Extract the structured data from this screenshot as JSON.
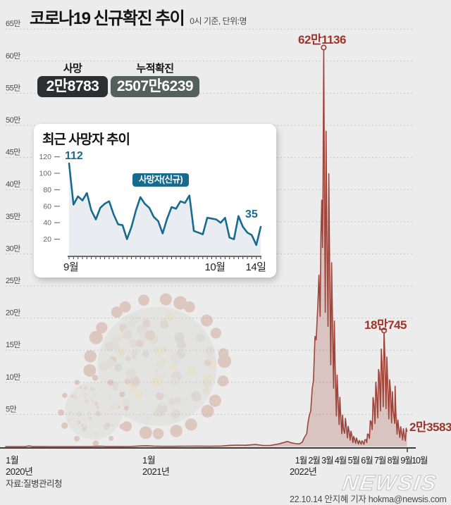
{
  "header": {
    "title": "코로나19 신규확진 추이",
    "subtitle": "0시 기준, 단위:명"
  },
  "stats": [
    {
      "label": "사망",
      "value": "2만8783"
    },
    {
      "label": "누적확진",
      "value": "2507만6239"
    }
  ],
  "inset": {
    "title": "최근 사망자 추이",
    "legend": "사망자(신규)",
    "first_label": "112",
    "last_label": "35",
    "x_labels": [
      "9월",
      "10월",
      "14일"
    ],
    "color": "#176b8d"
  },
  "main_chart": {
    "y_tick_labels": [
      "65만",
      "60만",
      "55만",
      "50만",
      "45만",
      "40만",
      "35만",
      "30만",
      "25만",
      "20만",
      "15만",
      "10만",
      "5만"
    ],
    "x_axis": {
      "y2020": {
        "month": "1월",
        "year": "2020년"
      },
      "y2021": {
        "month": "1월",
        "year": "2021년"
      },
      "y2022": {
        "months": [
          "1월",
          "2월",
          "3월",
          "4월",
          "5월",
          "6월",
          "7월",
          "8월",
          "9월",
          "10월"
        ],
        "year": "2022년"
      }
    },
    "line_color": "#9e453c",
    "fill_color": "rgba(158,69,60,0.24)"
  },
  "footer": {
    "source": "자료:질병관리청",
    "brand": "NEWSIS",
    "credit": "22.10.14 안지혜 기자 hokma@newsis.com"
  },
  "chart_data": [
    {
      "type": "area",
      "title": "코로나19 신규확진 추이",
      "unit": "명",
      "x_range": [
        "2020-01-01",
        "2022-10-14"
      ],
      "ylim": [
        0,
        650000
      ],
      "y_tick_step": 50000,
      "grid": true,
      "series": [
        {
          "name": "신규확진",
          "points": [
            [
              "2020-01-01",
              1
            ],
            [
              "2020-02-01",
              1
            ],
            [
              "2020-02-20",
              104
            ],
            [
              "2020-02-29",
              909
            ],
            [
              "2020-03-10",
              131
            ],
            [
              "2020-04-01",
              89
            ],
            [
              "2020-05-01",
              9
            ],
            [
              "2020-06-01",
              35
            ],
            [
              "2020-07-01",
              54
            ],
            [
              "2020-08-01",
              31
            ],
            [
              "2020-08-27",
              441
            ],
            [
              "2020-09-15",
              106
            ],
            [
              "2020-10-15",
              110
            ],
            [
              "2020-11-15",
              208
            ],
            [
              "2020-12-13",
              1030
            ],
            [
              "2020-12-25",
              1240
            ],
            [
              "2021-01-10",
              657
            ],
            [
              "2021-02-01",
              305
            ],
            [
              "2021-03-01",
              355
            ],
            [
              "2021-04-01",
              551
            ],
            [
              "2021-05-01",
              627
            ],
            [
              "2021-06-01",
              459
            ],
            [
              "2021-07-01",
              762
            ],
            [
              "2021-07-22",
              1842
            ],
            [
              "2021-08-11",
              2222
            ],
            [
              "2021-09-01",
              1961
            ],
            [
              "2021-09-25",
              3271
            ],
            [
              "2021-10-15",
              1684
            ],
            [
              "2021-11-01",
              1685
            ],
            [
              "2021-11-24",
              4115
            ],
            [
              "2021-12-15",
              7848
            ],
            [
              "2021-12-25",
              5842
            ],
            [
              "2022-01-05",
              4441
            ],
            [
              "2022-01-15",
              4193
            ],
            [
              "2022-01-22",
              7008
            ],
            [
              "2022-01-26",
              13009
            ],
            [
              "2022-02-02",
              20269
            ],
            [
              "2022-02-05",
              36345
            ],
            [
              "2022-02-09",
              49567
            ],
            [
              "2022-02-12",
              54938
            ],
            [
              "2022-02-16",
              90439
            ],
            [
              "2022-02-19",
              102211
            ],
            [
              "2022-02-23",
              171451
            ],
            [
              "2022-02-26",
              166209
            ],
            [
              "2022-03-02",
              219241
            ],
            [
              "2022-03-05",
              266853
            ],
            [
              "2022-03-08",
              202721
            ],
            [
              "2022-03-10",
              327549
            ],
            [
              "2022-03-12",
              383664
            ],
            [
              "2022-03-14",
              309790
            ],
            [
              "2022-03-15",
              362338
            ],
            [
              "2022-03-17",
              621136
            ],
            [
              "2022-03-19",
              381454
            ],
            [
              "2022-03-21",
              209169
            ],
            [
              "2022-03-23",
              490881
            ],
            [
              "2022-03-25",
              339514
            ],
            [
              "2022-03-28",
              187213
            ],
            [
              "2022-03-30",
              424641
            ],
            [
              "2022-04-01",
              280273
            ],
            [
              "2022-04-04",
              127190
            ],
            [
              "2022-04-06",
              286294
            ],
            [
              "2022-04-08",
              205333
            ],
            [
              "2022-04-11",
              90928
            ],
            [
              "2022-04-13",
              195419
            ],
            [
              "2022-04-15",
              125846
            ],
            [
              "2022-04-18",
              47743
            ],
            [
              "2022-04-20",
              111319
            ],
            [
              "2022-04-22",
              81058
            ],
            [
              "2022-04-25",
              34370
            ],
            [
              "2022-04-27",
              76787
            ],
            [
              "2022-04-29",
              50568
            ],
            [
              "2022-05-02",
              20084
            ],
            [
              "2022-05-04",
              49064
            ],
            [
              "2022-05-06",
              26714
            ],
            [
              "2022-05-09",
              20601
            ],
            [
              "2022-05-11",
              43925
            ],
            [
              "2022-05-13",
              32451
            ],
            [
              "2022-05-16",
              13296
            ],
            [
              "2022-05-18",
              31352
            ],
            [
              "2022-05-20",
              25125
            ],
            [
              "2022-05-23",
              9975
            ],
            [
              "2022-05-25",
              23956
            ],
            [
              "2022-05-27",
              18816
            ],
            [
              "2022-05-30",
              6139
            ],
            [
              "2022-06-01",
              15797
            ],
            [
              "2022-06-03",
              12542
            ],
            [
              "2022-06-06",
              5022
            ],
            [
              "2022-06-08",
              13358
            ],
            [
              "2022-06-10",
              9315
            ],
            [
              "2022-06-13",
              3828
            ],
            [
              "2022-06-15",
              9435
            ],
            [
              "2022-06-17",
              7198
            ],
            [
              "2022-06-20",
              3538
            ],
            [
              "2022-06-22",
              8978
            ],
            [
              "2022-06-24",
              7221
            ],
            [
              "2022-06-27",
              3423
            ],
            [
              "2022-06-29",
              10455
            ],
            [
              "2022-07-02",
              10715
            ],
            [
              "2022-07-04",
              6253
            ],
            [
              "2022-07-06",
              19371
            ],
            [
              "2022-07-08",
              19323
            ],
            [
              "2022-07-11",
              12693
            ],
            [
              "2022-07-13",
              40266
            ],
            [
              "2022-07-15",
              38882
            ],
            [
              "2022-07-18",
              26299
            ],
            [
              "2022-07-20",
              76402
            ],
            [
              "2022-07-22",
              68632
            ],
            [
              "2022-07-25",
              35883
            ],
            [
              "2022-07-27",
              100285
            ],
            [
              "2022-07-29",
              85320
            ],
            [
              "2022-08-01",
              44689
            ],
            [
              "2022-08-03",
              119922
            ],
            [
              "2022-08-05",
              112901
            ],
            [
              "2022-08-08",
              55292
            ],
            [
              "2022-08-10",
              151792
            ],
            [
              "2022-08-12",
              128714
            ],
            [
              "2022-08-15",
              62078
            ],
            [
              "2022-08-17",
              180745
            ],
            [
              "2022-08-19",
              138812
            ],
            [
              "2022-08-22",
              59046
            ],
            [
              "2022-08-24",
              139339
            ],
            [
              "2022-08-26",
              101140
            ],
            [
              "2022-08-29",
              43142
            ],
            [
              "2022-08-31",
              103961
            ],
            [
              "2022-09-02",
              89586
            ],
            [
              "2022-09-05",
              36938
            ],
            [
              "2022-09-07",
              85540
            ],
            [
              "2022-09-09",
              57309
            ],
            [
              "2022-09-13",
              36000
            ],
            [
              "2022-09-14",
              93981
            ],
            [
              "2022-09-16",
              51874
            ],
            [
              "2022-09-19",
              19407
            ],
            [
              "2022-09-21",
              41286
            ],
            [
              "2022-09-23",
              29108
            ],
            [
              "2022-09-26",
              14168
            ],
            [
              "2022-09-28",
              30943
            ],
            [
              "2022-09-30",
              23354
            ],
            [
              "2022-10-03",
              10349
            ],
            [
              "2022-10-05",
              27766
            ],
            [
              "2022-10-07",
              19378
            ],
            [
              "2022-10-10",
              8981
            ],
            [
              "2022-10-12",
              28433
            ],
            [
              "2022-10-14",
              23583
            ]
          ]
        }
      ],
      "annotations": [
        {
          "date": "2022-03-17",
          "value": 621136,
          "label": "62만1136",
          "marker": true
        },
        {
          "date": "2022-08-17",
          "value": 180745,
          "label": "18만745",
          "marker": true
        },
        {
          "date": "2022-10-14",
          "value": 23583,
          "label": "2만3583",
          "marker": false
        }
      ]
    },
    {
      "type": "area",
      "title": "최근 사망자 추이",
      "series_name": "사망자(신규)",
      "x_range": [
        "2022-09-01",
        "2022-10-14"
      ],
      "ylim": [
        0,
        130
      ],
      "y_ticks": [
        120,
        100,
        80,
        60,
        40,
        20
      ],
      "x_tick_labels": [
        "9월",
        "10월",
        "14일"
      ],
      "values": [
        112,
        62,
        72,
        67,
        76,
        55,
        44,
        58,
        63,
        66,
        50,
        38,
        37,
        20,
        35,
        55,
        71,
        63,
        58,
        47,
        42,
        27,
        45,
        59,
        57,
        66,
        64,
        73,
        30,
        28,
        26,
        46,
        45,
        44,
        40,
        46,
        22,
        20,
        48,
        35,
        28,
        25,
        13,
        35
      ],
      "endpoint_labels": {
        "first": 112,
        "last": 35
      }
    }
  ]
}
